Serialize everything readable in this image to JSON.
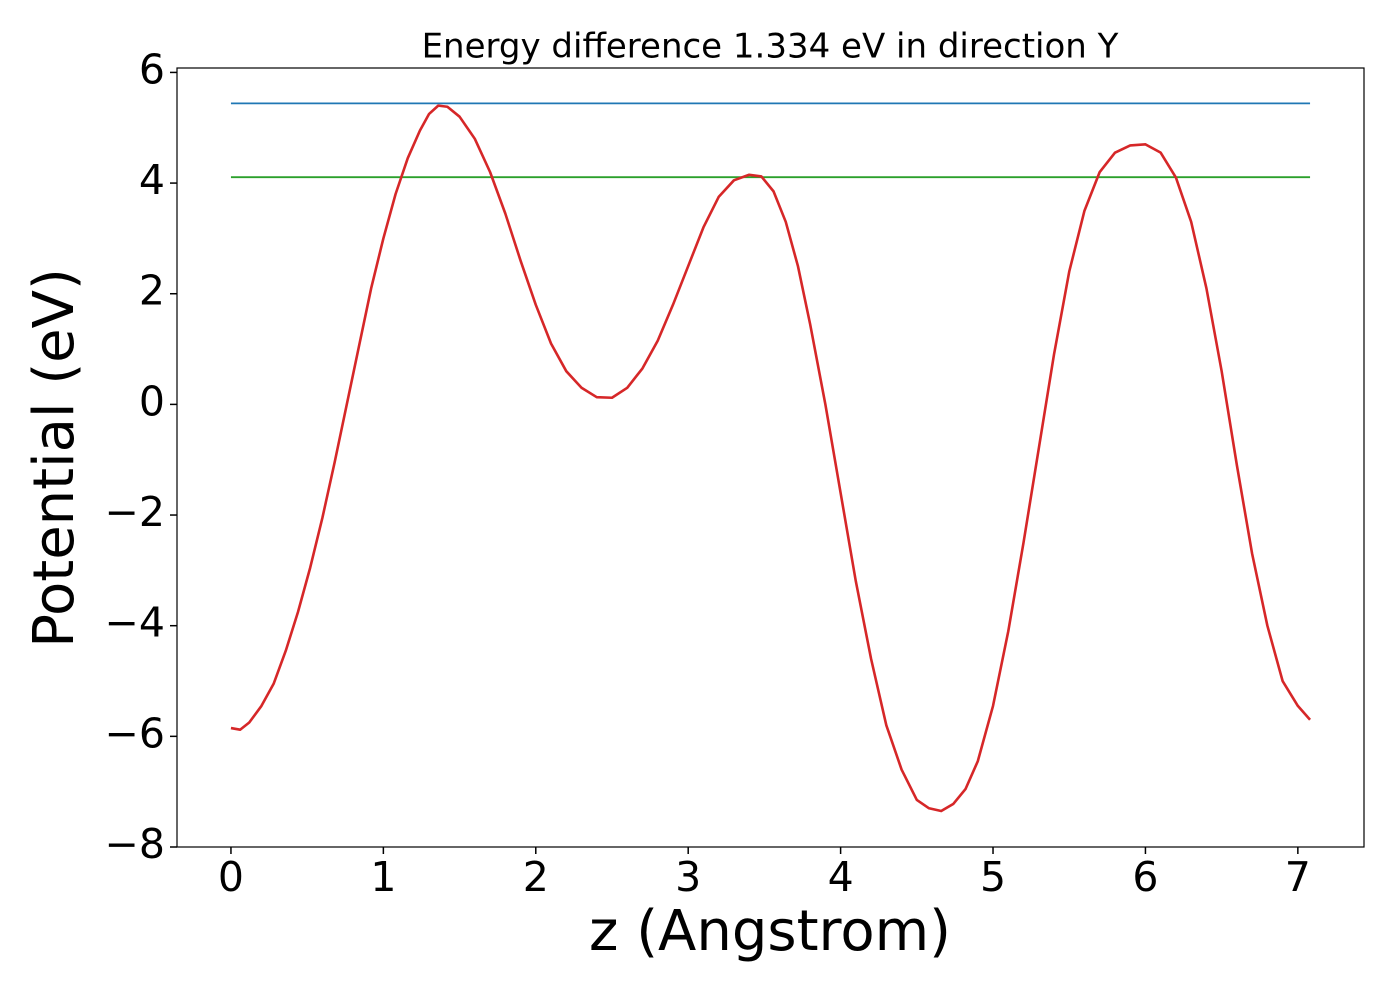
{
  "chart_data": {
    "type": "line",
    "title": "Energy difference 1.334 eV in direction Y",
    "x_label": "z (Angstrom)",
    "y_label": "Potential (eV)",
    "xlim": [
      -0.354,
      7.434
    ],
    "ylim": [
      -8.0,
      6.08
    ],
    "xticks": [
      0,
      1,
      2,
      3,
      4,
      5,
      6,
      7
    ],
    "yticks": [
      {
        "value": -8,
        "label": "−8"
      },
      {
        "value": -6,
        "label": "−6"
      },
      {
        "value": -4,
        "label": "−4"
      },
      {
        "value": -2,
        "label": "−2"
      },
      0,
      2,
      4,
      6
    ],
    "grid": false,
    "series": [
      {
        "color": "#1f77b4",
        "x": [
          0,
          7.08
        ],
        "values": [
          5.44,
          5.44
        ]
      },
      {
        "color": "#2ca02c",
        "x": [
          0,
          7.08
        ],
        "values": [
          4.106,
          4.106
        ]
      },
      {
        "color": "#d62728",
        "x": [
          0,
          0.06,
          0.12,
          0.2,
          0.28,
          0.36,
          0.44,
          0.52,
          0.6,
          0.68,
          0.76,
          0.84,
          0.92,
          1.0,
          1.08,
          1.16,
          1.24,
          1.3,
          1.36,
          1.42,
          1.5,
          1.6,
          1.7,
          1.8,
          1.9,
          2.0,
          2.1,
          2.2,
          2.3,
          2.4,
          2.5,
          2.6,
          2.7,
          2.8,
          2.9,
          3.0,
          3.1,
          3.2,
          3.3,
          3.4,
          3.48,
          3.56,
          3.64,
          3.72,
          3.8,
          3.9,
          4.0,
          4.1,
          4.2,
          4.3,
          4.4,
          4.5,
          4.58,
          4.66,
          4.74,
          4.82,
          4.9,
          5.0,
          5.1,
          5.2,
          5.3,
          5.4,
          5.5,
          5.6,
          5.7,
          5.8,
          5.9,
          6.0,
          6.1,
          6.2,
          6.3,
          6.4,
          6.5,
          6.6,
          6.7,
          6.8,
          6.9,
          7.0,
          7.08
        ],
        "values": [
          -5.85,
          -5.88,
          -5.75,
          -5.45,
          -5.05,
          -4.45,
          -3.75,
          -2.95,
          -2.05,
          -1.05,
          0.0,
          1.05,
          2.1,
          3.0,
          3.8,
          4.45,
          4.95,
          5.25,
          5.4,
          5.38,
          5.2,
          4.8,
          4.2,
          3.45,
          2.6,
          1.8,
          1.1,
          0.6,
          0.3,
          0.13,
          0.12,
          0.3,
          0.65,
          1.15,
          1.8,
          2.5,
          3.2,
          3.75,
          4.05,
          4.15,
          4.12,
          3.85,
          3.3,
          2.5,
          1.45,
          0.0,
          -1.6,
          -3.2,
          -4.6,
          -5.8,
          -6.6,
          -7.15,
          -7.3,
          -7.35,
          -7.22,
          -6.95,
          -6.45,
          -5.45,
          -4.1,
          -2.5,
          -0.8,
          0.9,
          2.4,
          3.5,
          4.2,
          4.55,
          4.68,
          4.7,
          4.55,
          4.1,
          3.3,
          2.1,
          0.6,
          -1.1,
          -2.7,
          -4.0,
          -5.0,
          -5.45,
          -5.7
        ]
      }
    ]
  }
}
